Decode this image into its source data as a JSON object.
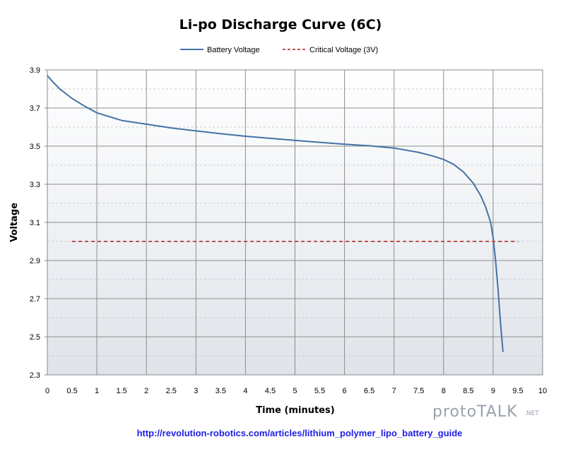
{
  "chart_data": {
    "type": "line",
    "title": "Li-po Discharge Curve (6C)",
    "xlabel": "Time (minutes)",
    "ylabel": "Voltage",
    "xlim": [
      0,
      10
    ],
    "ylim": [
      2.3,
      3.9
    ],
    "x_ticks": [
      "0",
      "0.5",
      "1",
      "1.5",
      "2",
      "2.5",
      "3",
      "3.5",
      "4",
      "4.5",
      "5",
      "5.5",
      "6",
      "6.5",
      "7",
      "7.5",
      "8",
      "8.5",
      "9",
      "9.5",
      "10"
    ],
    "y_ticks": [
      "2.3",
      "2.5",
      "2.7",
      "2.9",
      "3.1",
      "3.3",
      "3.5",
      "3.7",
      "3.9"
    ],
    "grid": true,
    "legend_position": "top",
    "series": [
      {
        "name": "Battery Voltage",
        "color": "#4572a7",
        "style": "solid",
        "x": [
          0,
          0.1,
          0.25,
          0.5,
          0.75,
          1,
          1.5,
          2,
          2.5,
          3,
          3.5,
          4,
          4.5,
          5,
          5.5,
          6,
          6.5,
          7,
          7.5,
          7.8,
          8,
          8.2,
          8.4,
          8.6,
          8.75,
          8.85,
          8.95,
          9.0,
          9.05,
          9.1,
          9.15,
          9.2
        ],
        "y": [
          3.87,
          3.84,
          3.8,
          3.75,
          3.71,
          3.675,
          3.635,
          3.615,
          3.595,
          3.58,
          3.565,
          3.552,
          3.541,
          3.53,
          3.52,
          3.51,
          3.502,
          3.49,
          3.467,
          3.447,
          3.43,
          3.405,
          3.365,
          3.305,
          3.24,
          3.18,
          3.1,
          3.02,
          2.9,
          2.75,
          2.57,
          2.42
        ]
      },
      {
        "name": "Critical Voltage  (3V)",
        "color": "#c0504d",
        "style": "dashed",
        "x": [
          0.5,
          9.5
        ],
        "y": [
          3.0,
          3.0
        ]
      }
    ]
  },
  "source_link": "http://revolution-robotics.com/articles/lithium_polymer_lipo_battery_guide",
  "watermark": {
    "main": "protoTALK",
    "suffix": ".NET"
  }
}
